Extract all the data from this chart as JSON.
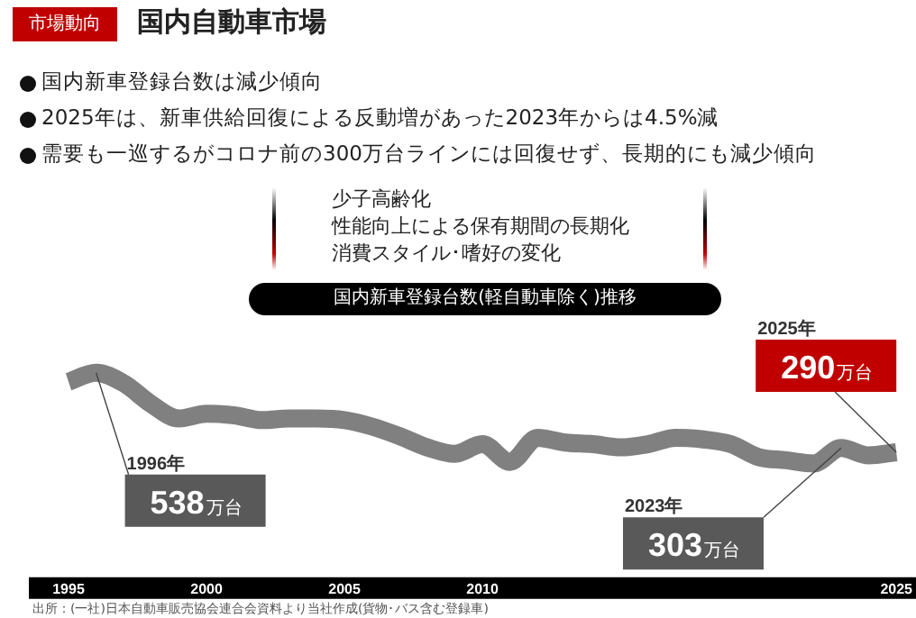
{
  "chart_data": {
    "type": "line",
    "title": "国内自動車市場",
    "subtitle": "国内新車登録台数(軽自動車除く)推移",
    "annotations": [
      "市場動向",
      "国内新車登録台数は減少傾向",
      "2025年は、新車供給回復による反動増があった2023年からは4.5%減",
      "需要も一巡するがコロナ前の300万台ラインには回復せず、長期的にも減少傾向",
      "少子高齢化",
      "性能向上による保有期間の長期化",
      "消費スタイル･嗜好の変化",
      "出所：(一社)日本自動車販売協会連合会資料より当社作成(貨物･バス含む登録車)",
      "1996年",
      "2023年",
      "2025年"
    ],
    "categories": [
      "1995",
      null,
      null,
      null,
      null,
      "2000",
      null,
      null,
      null,
      null,
      "2005",
      null,
      null,
      null,
      null,
      "2010",
      null,
      null,
      null,
      null,
      null,
      null,
      null,
      null,
      null,
      null,
      null,
      null,
      null,
      null,
      "2025"
    ],
    "series": [
      {
        "color": "#808080",
        "values": [
          510,
          538,
          505,
          440,
          395,
          410,
          405,
          390,
          395,
          395,
          390,
          370,
          340,
          305,
          285,
          315,
          260,
          335,
          320,
          315,
          305,
          315,
          335,
          330,
          315,
          275,
          265,
          255,
          303,
          280,
          290
        ],
        "value_labels": [
          null,
          "538万台",
          null,
          null,
          null,
          null,
          null,
          null,
          null,
          null,
          null,
          null,
          null,
          null,
          null,
          null,
          null,
          null,
          null,
          null,
          null,
          null,
          null,
          null,
          null,
          null,
          null,
          null,
          "303万台",
          null,
          "290万台"
        ]
      }
    ],
    "legend": false,
    "grid": false
  }
}
